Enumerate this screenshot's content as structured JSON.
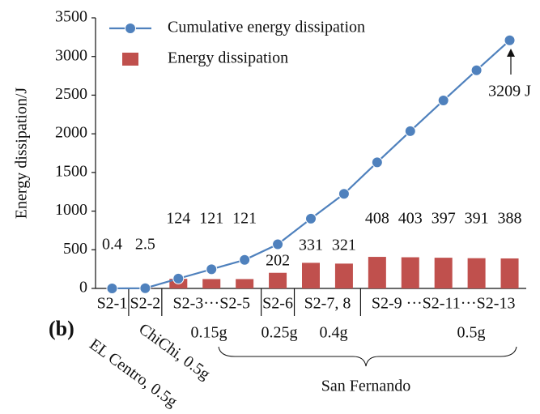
{
  "chart_data": {
    "type": "combo",
    "y_label": "Energy dissipation/J",
    "categories": [
      "S2-1",
      "S2-2",
      "S2-3···S2-5",
      null,
      null,
      "S2-6",
      "S2-7, 8",
      null,
      "S2-9 ···S2-11···S2-13",
      null,
      null,
      null,
      null
    ],
    "ylim": [
      0,
      3500
    ],
    "yticks": [
      0,
      500,
      1000,
      1500,
      2000,
      2500,
      3000,
      3500
    ],
    "grid": false,
    "legend": "top-left",
    "series": [
      {
        "name": "Cumulative energy dissipation",
        "type": "line",
        "color": "#4f81bd",
        "values": [
          0.4,
          2.9,
          127,
          248,
          369,
          571,
          902,
          1223,
          1631,
          2034,
          2431,
          2822,
          3209
        ],
        "value_labels": [
          null,
          null,
          null,
          null,
          null,
          null,
          null,
          null,
          null,
          null,
          null,
          null,
          "3209 J"
        ]
      },
      {
        "name": "Energy dissipation",
        "type": "bar",
        "color": "#c0504d",
        "values": [
          0.4,
          2.5,
          124,
          121,
          121,
          202,
          331,
          321,
          408,
          403,
          397,
          391,
          388
        ]
      }
    ],
    "annotations": {
      "panel": "(b)",
      "el_centro": "EL Centro, 0.5g",
      "chichi": "ChiChi, 0.5g",
      "pga_1": "0.15g",
      "pga_2": "0.25g",
      "pga_3": "0.4g",
      "pga_4": "0.5g",
      "san_fernando": "San Fernando"
    }
  }
}
